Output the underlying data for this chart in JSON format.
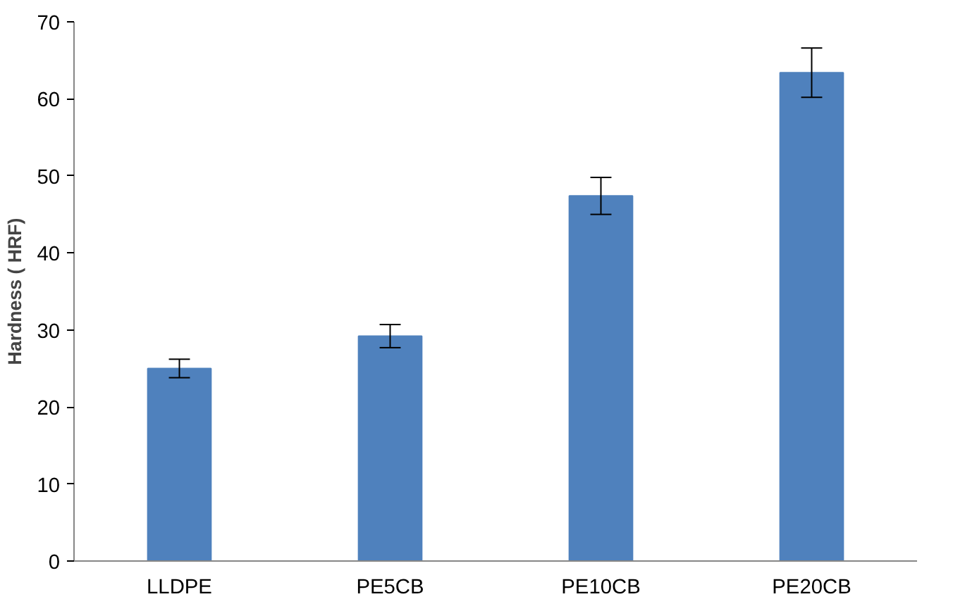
{
  "chart_data": {
    "type": "bar",
    "ylabel": "Hardness ( HRF)",
    "categories": [
      "LLDPE",
      "PE5CB",
      "PE10CB",
      "PE20CB"
    ],
    "values": [
      25.0,
      29.2,
      47.4,
      63.4
    ],
    "errors": [
      1.2,
      1.5,
      2.4,
      3.2
    ],
    "color": "#4f81bd",
    "ylim": [
      0,
      70
    ],
    "yticks": [
      0,
      10,
      20,
      30,
      40,
      50,
      60,
      70
    ],
    "grid": false
  }
}
